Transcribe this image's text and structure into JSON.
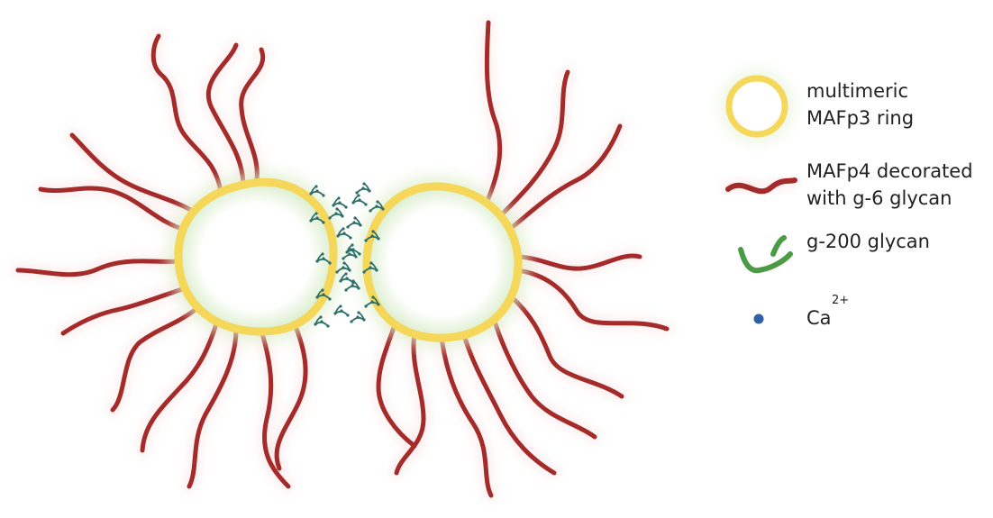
{
  "colors": {
    "ring": "#f5d75a",
    "ring_glow": "#dff0cf",
    "mafp4": "#a52a2a",
    "mafp4_glow": "#f6c9c9",
    "glycan": "#2e6e69",
    "legend_glycan": "#4c9a46",
    "calcium": "#2f5fa8"
  },
  "legend": {
    "ring_label_line1": "multimeric",
    "ring_label_line2": "MAFp3 ring",
    "mafp4_label_line1": "MAFp4 decorated",
    "mafp4_label_line2": "with g-6 glycan",
    "glycan_label": "g-200 glycan",
    "calcium_label": "Ca",
    "calcium_charge": "2+"
  },
  "icons": {
    "ring": "yellow-ring-icon",
    "mafp4": "red-chain-icon",
    "glycan": "green-glycan-icon",
    "calcium": "blue-dot-icon"
  }
}
